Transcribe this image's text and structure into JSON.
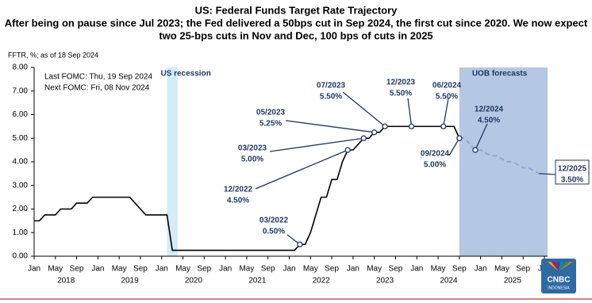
{
  "chart_data": {
    "type": "line",
    "title": "US: Federal Funds Target Rate Trajectory",
    "subtitle": [
      "After being on pause since Jul 2023; the Fed delivered a 50bps cut in Sep 2024, the first cut since 2020. We now expect",
      "two 25-bps cuts in Nov and Dec, 100 bps of cuts in 2025"
    ],
    "axis_note": "FFTR, %; as of 18 Sep 2024",
    "notes": [
      "Last FOMC: Thu, 19 Sep 2024",
      "Next FOMC: Fri, 08 Nov 2024"
    ],
    "watermark": {
      "brand": "CNBC",
      "region": "INDONESIA"
    },
    "xlim": [
      "2018-01",
      "2026-01"
    ],
    "ylim": [
      0,
      8
    ],
    "yticks": [
      {
        "value": 0,
        "label": "0.00"
      },
      {
        "value": 1,
        "label": "1.00"
      },
      {
        "value": 2,
        "label": "2.00"
      },
      {
        "value": 3,
        "label": "3.00"
      },
      {
        "value": 4,
        "label": "4.00"
      },
      {
        "value": 5,
        "label": "5.00"
      },
      {
        "value": 6,
        "label": "6.00"
      },
      {
        "value": 7,
        "label": "7.00"
      },
      {
        "value": 8,
        "label": "8.00"
      }
    ],
    "xticks": [
      {
        "value": "2018-01",
        "label": "Jan"
      },
      {
        "value": "2018-05",
        "label": "May"
      },
      {
        "value": "2018-09",
        "label": "Sep"
      },
      {
        "value": "2019-01",
        "label": "Jan"
      },
      {
        "value": "2019-05",
        "label": "May"
      },
      {
        "value": "2019-09",
        "label": "Sep"
      },
      {
        "value": "2020-01",
        "label": "Jan"
      },
      {
        "value": "2020-05",
        "label": "May"
      },
      {
        "value": "2020-09",
        "label": "Sep"
      },
      {
        "value": "2021-01",
        "label": "Jan"
      },
      {
        "value": "2021-05",
        "label": "May"
      },
      {
        "value": "2021-09",
        "label": "Sep"
      },
      {
        "value": "2022-01",
        "label": "Jan"
      },
      {
        "value": "2022-05",
        "label": "May"
      },
      {
        "value": "2022-09",
        "label": "Sep"
      },
      {
        "value": "2023-01",
        "label": "Jan"
      },
      {
        "value": "2023-05",
        "label": "May"
      },
      {
        "value": "2023-09",
        "label": "Sep"
      },
      {
        "value": "2024-01",
        "label": "Jan"
      },
      {
        "value": "2024-05",
        "label": "May"
      },
      {
        "value": "2024-09",
        "label": "Sep"
      },
      {
        "value": "2025-01",
        "label": "Jan"
      },
      {
        "value": "2025-05",
        "label": "May"
      },
      {
        "value": "2025-09",
        "label": "Sep"
      },
      {
        "value": "2026-01",
        "label": "Jan"
      }
    ],
    "year_labels": [
      {
        "value": "2018-07",
        "label": "2018"
      },
      {
        "value": "2019-07",
        "label": "2019"
      },
      {
        "value": "2020-07",
        "label": "2020"
      },
      {
        "value": "2021-07",
        "label": "2021"
      },
      {
        "value": "2022-07",
        "label": "2022"
      },
      {
        "value": "2023-07",
        "label": "2023"
      },
      {
        "value": "2024-07",
        "label": "2024"
      },
      {
        "value": "2025-07",
        "label": "2025"
      }
    ],
    "shaded_regions": [
      {
        "label": "US recession",
        "start": "2020-02",
        "end": "2020-04",
        "color": "#d4ecf7"
      },
      {
        "label": "UOB forecasts",
        "start": "2024-09",
        "end": "2026-01",
        "color": "#b4c8e4"
      }
    ],
    "series": [
      {
        "color": "#000000",
        "dashed": false,
        "x": [
          "2018-01",
          "2018-02",
          "2018-03",
          "2018-05",
          "2018-06",
          "2018-08",
          "2018-09",
          "2018-11",
          "2018-12",
          "2019-07",
          "2019-08",
          "2019-09",
          "2019-10",
          "2020-02",
          "2020-03",
          "2022-02",
          "2022-03",
          "2022-04",
          "2022-05",
          "2022-06",
          "2022-07",
          "2022-08",
          "2022-09",
          "2022-10",
          "2022-11",
          "2022-12",
          "2023-01",
          "2023-02",
          "2023-03",
          "2023-04",
          "2023-05",
          "2023-06",
          "2023-07",
          "2024-08",
          "2024-09"
        ],
        "values": [
          1.5,
          1.5,
          1.75,
          1.75,
          2,
          2,
          2.25,
          2.25,
          2.5,
          2.5,
          2.25,
          2,
          1.75,
          1.75,
          0.25,
          0.25,
          0.5,
          0.5,
          1,
          1.75,
          2.5,
          2.5,
          3.25,
          3.25,
          4,
          4.5,
          4.5,
          4.75,
          5,
          5,
          5.25,
          5.25,
          5.5,
          5.5,
          5
        ]
      },
      {
        "color": "#8ea9d0",
        "dashed": true,
        "x": [
          "2024-09",
          "2024-10",
          "2024-11",
          "2024-12",
          "2025-01",
          "2025-03",
          "2025-04",
          "2025-06",
          "2025-07",
          "2025-09",
          "2025-10",
          "2025-12"
        ],
        "values": [
          5,
          5,
          4.75,
          4.5,
          4.5,
          4.25,
          4.25,
          4,
          4,
          3.75,
          3.75,
          3.5
        ]
      }
    ],
    "annotations": [
      {
        "x": "2022-03",
        "value": 0.5,
        "date_label": "03/2022",
        "value_label": "0.50%",
        "circle": true
      },
      {
        "x": "2022-12",
        "value": 4.5,
        "date_label": "12/2022",
        "value_label": "4.50%",
        "circle": true
      },
      {
        "x": "2023-03",
        "value": 5,
        "date_label": "03/2023",
        "value_label": "5.00%",
        "circle": true
      },
      {
        "x": "2023-05",
        "value": 5.25,
        "date_label": "05/2023",
        "value_label": "5.25%",
        "circle": true
      },
      {
        "x": "2023-07",
        "value": 5.5,
        "date_label": "07/2023",
        "value_label": "5.50%",
        "circle": true
      },
      {
        "x": "2023-12",
        "value": 5.5,
        "date_label": "12/2023",
        "value_label": "5.50%",
        "circle": true
      },
      {
        "x": "2024-06",
        "value": 5.5,
        "date_label": "06/2024",
        "value_label": "5.50%",
        "circle": true
      },
      {
        "x": "2024-09",
        "value": 5,
        "date_label": "09/2024",
        "value_label": "5.00%",
        "circle": true
      },
      {
        "x": "2024-12",
        "value": 4.5,
        "date_label": "12/2024",
        "value_label": "4.50%",
        "circle": true
      },
      {
        "x": "2025-12",
        "value": 3.5,
        "date_label": "12/2025",
        "value_label": "3.50%",
        "circle": false
      }
    ]
  }
}
